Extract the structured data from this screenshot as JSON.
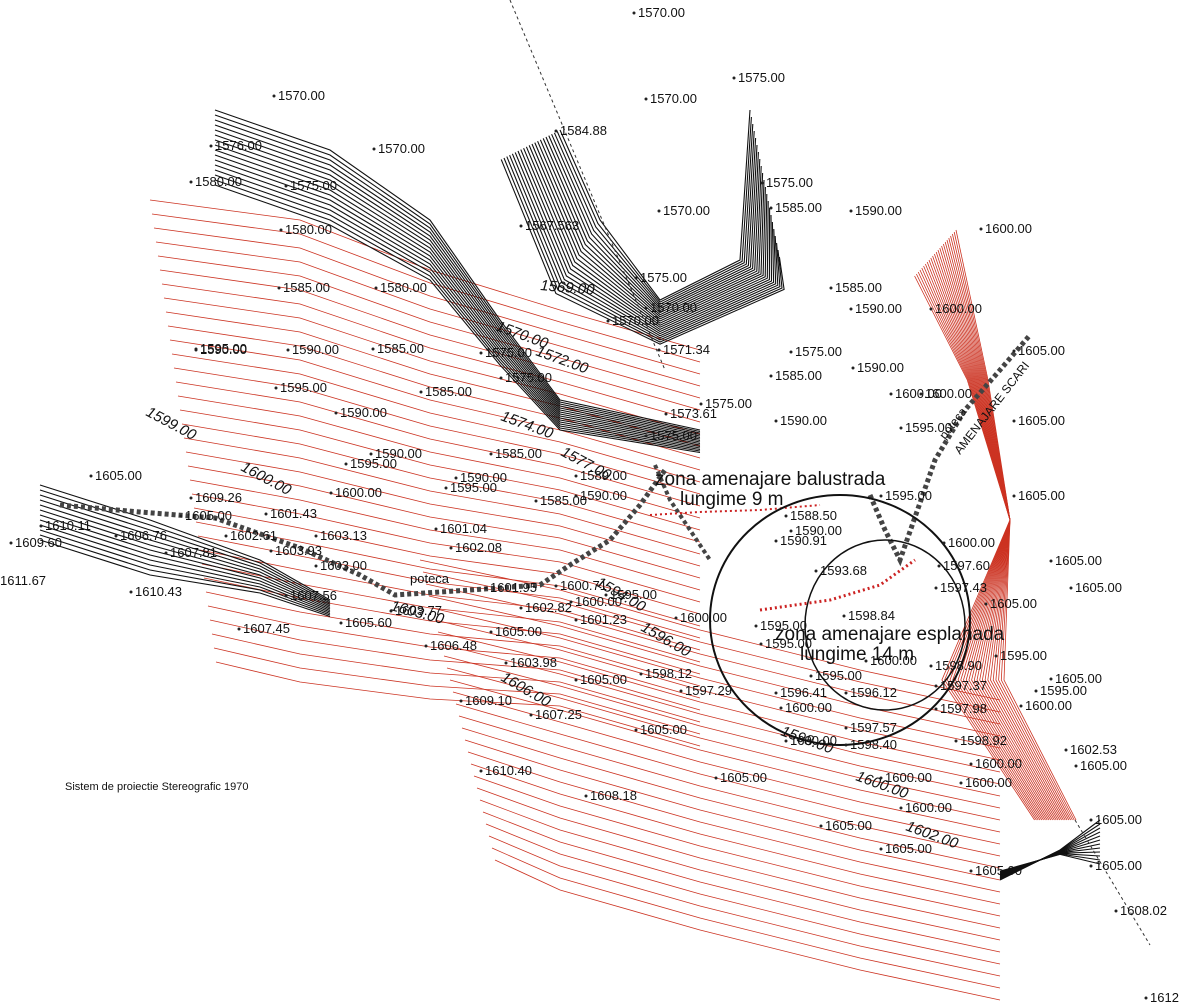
{
  "map": {
    "projection_note": "Sistem de proiectie Stereografic 1970",
    "colors": {
      "contour_major": "#111111",
      "contour_minor": "#cc3322",
      "path": "#555555",
      "circle": "#111111"
    },
    "zone_balustrada": {
      "line1": "zona amenajare balustrada",
      "line2": "lungime 9 m"
    },
    "zone_esplanada": {
      "line1": "zona amenajare esplanada",
      "line2": "lungime 14 m"
    },
    "zone_scari": {
      "label": "AMENAJARE SCARI",
      "poteca": "poteca"
    },
    "poteca_label": "poteca",
    "contour_labels": [
      "1599.00",
      "1600.00",
      "1569.00",
      "1570.00",
      "1572.00",
      "1574.00",
      "1577.00",
      "1594.00",
      "1596.00",
      "1603.00",
      "1606.00",
      "1600.00",
      "1602.00",
      "1598.00"
    ],
    "elevations": [
      "1570.00",
      "1575.00",
      "1570.00",
      "1584.88",
      "1570.00",
      "1580.00",
      "1576.00",
      "1575.00",
      "1570.00",
      "1575.00",
      "1580.00",
      "1567.563",
      "1570.00",
      "1585.00",
      "1590.00",
      "1600.00",
      "1585.00",
      "1580.00",
      "1575.00",
      "1570.00",
      "1585.00",
      "1590.00",
      "1600.00",
      "1590.00",
      "1570.00",
      "1595.00",
      "1590.00",
      "1585.00",
      "1575.00",
      "1571.34",
      "1575.00",
      "1585.00",
      "1590.00",
      "1605.00",
      "1600.00",
      "1595.00",
      "1585.00",
      "1575.00",
      "1573.61",
      "1575.00",
      "1590.00",
      "1600.00",
      "1605.00",
      "1590.00",
      "1595.00",
      "1575.00",
      "1585.00",
      "1595.00",
      "1590.00",
      "1590.00",
      "1589.00",
      "1595.00",
      "1605.00",
      "1605.00",
      "1600.00",
      "1595.00",
      "1585.00",
      "1588.50",
      "1590.00",
      "1600.00",
      "1605.00",
      "1605.00",
      "1609.26",
      "1605.00",
      "1601.43",
      "1603.13",
      "1601.04",
      "1602.08",
      "1590.91",
      "1593.68",
      "1597.60",
      "1597.43",
      "1605.00",
      "1609.60",
      "1610.11",
      "1611.67",
      "1606.76",
      "1602.61",
      "1607.81",
      "1603.93",
      "1603.00",
      "1610.43",
      "1607.56",
      "1607.45",
      "1605.60",
      "1603.77",
      "1601.95",
      "1602.82",
      "1600.71",
      "1600.00",
      "1601.23",
      "1595.00",
      "1595.00",
      "1600.00",
      "1595.00",
      "1598.84",
      "1600.00",
      "1606.48",
      "1605.00",
      "1603.98",
      "1605.00",
      "1598.12",
      "1597.29",
      "1596.41",
      "1600.00",
      "1595.00",
      "1596.12",
      "1597.37",
      "1598.90",
      "1605.00",
      "1609.10",
      "1607.25",
      "1605.00",
      "1600.00",
      "1597.57",
      "1598.40",
      "1597.98",
      "1600.00",
      "1598.92",
      "1610.40",
      "1608.18",
      "1605.00",
      "1600.00",
      "1600.00",
      "1605.00",
      "1602.53",
      "1605.00",
      "1605.00",
      "1605.00",
      "1605.00",
      "1608.02",
      "1605.00",
      "1600.00",
      "1600.00",
      "1595.00",
      "1595.00",
      "1590.00",
      "1612"
    ]
  }
}
